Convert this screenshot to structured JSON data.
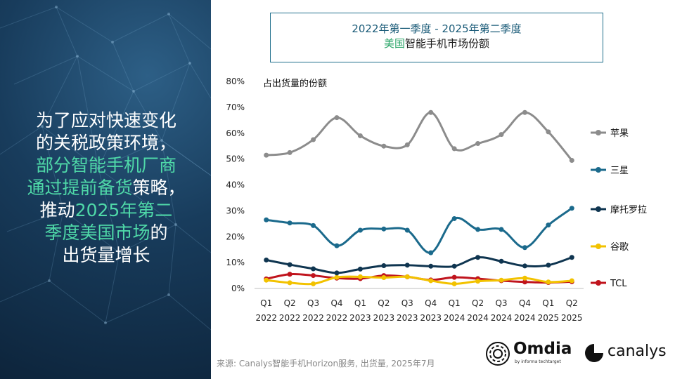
{
  "headline": {
    "lines": [
      [
        {
          "t": "为了应对快速变化",
          "h": false
        }
      ],
      [
        {
          "t": "的关税政策环境，",
          "h": false
        }
      ],
      [
        {
          "t": "部分智能手机厂商",
          "h": true
        }
      ],
      [
        {
          "t": "通过提前备货",
          "h": true
        },
        {
          "t": "策略，",
          "h": false
        }
      ],
      [
        {
          "t": "推动",
          "h": false
        },
        {
          "t": "2025年第二",
          "h": true
        }
      ],
      [
        {
          "t": "季度美国市场",
          "h": true
        },
        {
          "t": "的",
          "h": false
        }
      ],
      [
        {
          "t": "出货量增长",
          "h": false
        }
      ]
    ]
  },
  "title": {
    "line1": "2022年第一季度 - 2025年第二季度",
    "line2_highlight": "美国",
    "line2_rest": "智能手机市场份额"
  },
  "chart_data": {
    "type": "line",
    "ylabel": "占出货量的份额",
    "ylim": [
      0,
      80
    ],
    "yticks": [
      "0%",
      "10%",
      "20%",
      "30%",
      "40%",
      "50%",
      "60%",
      "70%",
      "80%"
    ],
    "grid": false,
    "legend_position": "right",
    "categories": [
      {
        "q": "Q1",
        "y": "2022"
      },
      {
        "q": "Q2",
        "y": "2022"
      },
      {
        "q": "Q3",
        "y": "2022"
      },
      {
        "q": "Q4",
        "y": "2022"
      },
      {
        "q": "Q1",
        "y": "2023"
      },
      {
        "q": "Q2",
        "y": "2023"
      },
      {
        "q": "Q3",
        "y": "2023"
      },
      {
        "q": "Q4",
        "y": "2023"
      },
      {
        "q": "Q1",
        "y": "2024"
      },
      {
        "q": "Q2",
        "y": "2024"
      },
      {
        "q": "Q3",
        "y": "2024"
      },
      {
        "q": "Q4",
        "y": "2024"
      },
      {
        "q": "Q1",
        "y": "2025"
      },
      {
        "q": "Q2",
        "y": "2025"
      }
    ],
    "series": [
      {
        "name": "苹果",
        "color": "#8c8c8c",
        "values": [
          51.5,
          52.5,
          57.5,
          66,
          59,
          55,
          55.5,
          68,
          54,
          56,
          59.5,
          68,
          60.5,
          49.5
        ]
      },
      {
        "name": "三星",
        "color": "#1b6a8c",
        "values": [
          26.5,
          25.3,
          24.3,
          16.5,
          22.5,
          23,
          22.5,
          13.8,
          27,
          22.8,
          22.8,
          15.8,
          24.5,
          31
        ]
      },
      {
        "name": "摩托罗拉",
        "color": "#0f3550",
        "values": [
          11,
          9.2,
          7.6,
          6,
          7.5,
          8.8,
          9,
          8.6,
          8.6,
          12,
          10.5,
          8.7,
          9,
          12
        ]
      },
      {
        "name": "谷歌",
        "color": "#f2c200",
        "values": [
          3.2,
          2.2,
          1.8,
          4.3,
          4.5,
          4.2,
          4.5,
          3,
          1.8,
          2.8,
          3.2,
          4,
          2.5,
          3
        ]
      },
      {
        "name": "TCL",
        "color": "#c0141d",
        "values": [
          3.7,
          5.5,
          5,
          4,
          3.8,
          5,
          4.5,
          3.3,
          4.3,
          3.8,
          3,
          2.5,
          2.3,
          2.6
        ]
      }
    ]
  },
  "source": "来源: Canalys智能手机Horizon服务, 出货量, 2025年7月",
  "logos": {
    "omdia": "Omdia",
    "omdia_sub": "by informa techtarget",
    "canalys": "canalys"
  }
}
